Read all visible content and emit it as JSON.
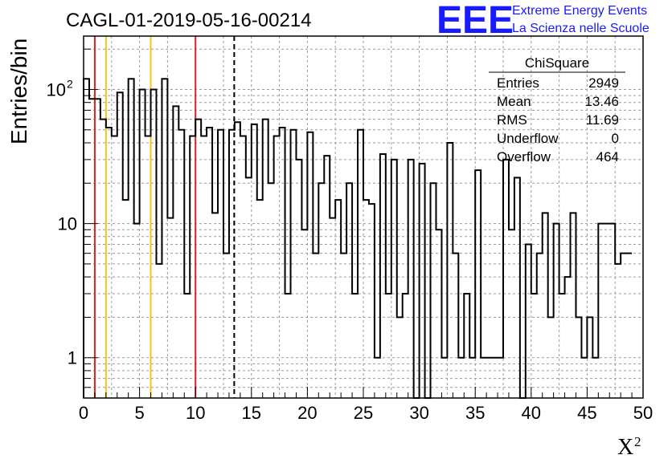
{
  "chart_data": {
    "type": "histogram",
    "title": "CAGL-01-2019-05-16-00214",
    "xlabel": "X",
    "xlabel_sup": "2",
    "ylabel": "Entries/bin",
    "xlim": [
      0,
      50
    ],
    "ylim": [
      0.5,
      250
    ],
    "yscale": "log",
    "grid": true,
    "x_ticks": [
      "0",
      "5",
      "10",
      "15",
      "20",
      "25",
      "30",
      "35",
      "40",
      "45",
      "50"
    ],
    "y_ticks": [
      {
        "value": 1,
        "label": "1"
      },
      {
        "value": 10,
        "label": "10"
      },
      {
        "value": 100,
        "label": "10",
        "sup": "2"
      }
    ],
    "bin_width": 0.5,
    "bins_start": 0,
    "values": [
      120,
      85,
      85,
      60,
      52,
      45,
      95,
      15,
      120,
      10,
      100,
      45,
      100,
      5,
      120,
      11,
      75,
      50,
      3,
      45,
      60,
      45,
      52,
      12,
      50,
      6,
      50,
      57,
      45,
      22,
      55,
      15,
      60,
      20,
      45,
      52,
      3,
      50,
      30,
      9,
      48,
      6,
      20,
      32,
      11,
      15,
      6,
      20,
      3,
      50,
      15,
      14,
      1,
      33,
      3,
      30,
      2,
      3,
      30,
      0.4,
      28,
      0.4,
      20,
      9,
      1,
      40,
      6,
      1,
      3,
      1,
      25,
      1,
      1,
      1,
      1,
      30,
      9,
      22,
      0.4,
      7,
      3,
      6,
      12,
      2,
      10,
      3,
      4,
      12,
      2,
      1,
      2,
      1,
      10,
      10,
      10,
      5,
      6,
      6
    ],
    "vertical_lines": [
      {
        "x": 1,
        "color": "#d42424",
        "style": "solid"
      },
      {
        "x": 2,
        "color": "#f5c518",
        "style": "solid"
      },
      {
        "x": 6,
        "color": "#f5c518",
        "style": "solid"
      },
      {
        "x": 10,
        "color": "#d42424",
        "style": "solid"
      },
      {
        "x": 13.46,
        "color": "#000000",
        "style": "dashed"
      }
    ],
    "stats_box": {
      "title": "ChiSquare",
      "rows": [
        {
          "label": "Entries",
          "value": "2949"
        },
        {
          "label": "Mean",
          "value": "13.46"
        },
        {
          "label": "RMS",
          "value": "11.69"
        },
        {
          "label": "Underflow",
          "value": "0"
        },
        {
          "label": "Overflow",
          "value": "464"
        }
      ]
    }
  },
  "brand": {
    "logo": "EEE",
    "line1": "Extreme Energy Events",
    "line2": "La Scienza nelle Scuole",
    "color": "#1a1aff"
  }
}
